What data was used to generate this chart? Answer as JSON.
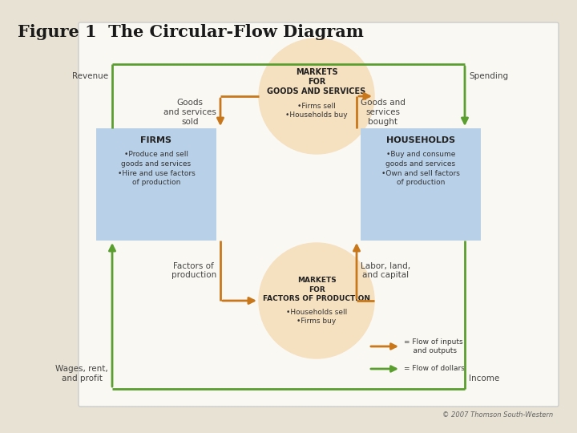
{
  "title": "Figure 1  The Circular-Flow Diagram",
  "bg_outer": "#e8e2d4",
  "bg_inner": "#faf8f3",
  "firms_box": {
    "label": "FIRMS",
    "text": "•Produce and sell\ngoods and services\n•Hire and use factors\nof production",
    "color": "#b8d0e8"
  },
  "households_box": {
    "label": "HOUSEHOLDS",
    "text": "•Buy and consume\ngoods and services\n•Own and sell factors\nof production",
    "color": "#b8d0e8"
  },
  "markets_goods": {
    "label": "MARKETS\nFOR\nGOODS AND SERVICES",
    "text": "•Firms sell\n•Households buy",
    "color": "#f5e0c0"
  },
  "markets_factors": {
    "label": "MARKETS\nFOR\nFACTORS OF PRODUCTION",
    "text": "•Households sell\n•Firms buy",
    "color": "#f5e0c0"
  },
  "orange_color": "#c8781a",
  "green_color": "#5a9e2f",
  "label_revenue": "Revenue",
  "label_spending": "Spending",
  "label_goods_sold": "Goods\nand services\nsold",
  "label_goods_bought": "Goods and\nservices\nbought",
  "label_factors_prod": "Factors of\nproduction",
  "label_labor": "Labor, land,\nand capital",
  "label_wages": "Wages, rent,\nand profit",
  "label_income": "Income",
  "legend_orange": "= Flow of inputs\n    and outputs",
  "legend_green": "= Flow of dollars",
  "copyright": "© 2007 Thomson South-Western"
}
